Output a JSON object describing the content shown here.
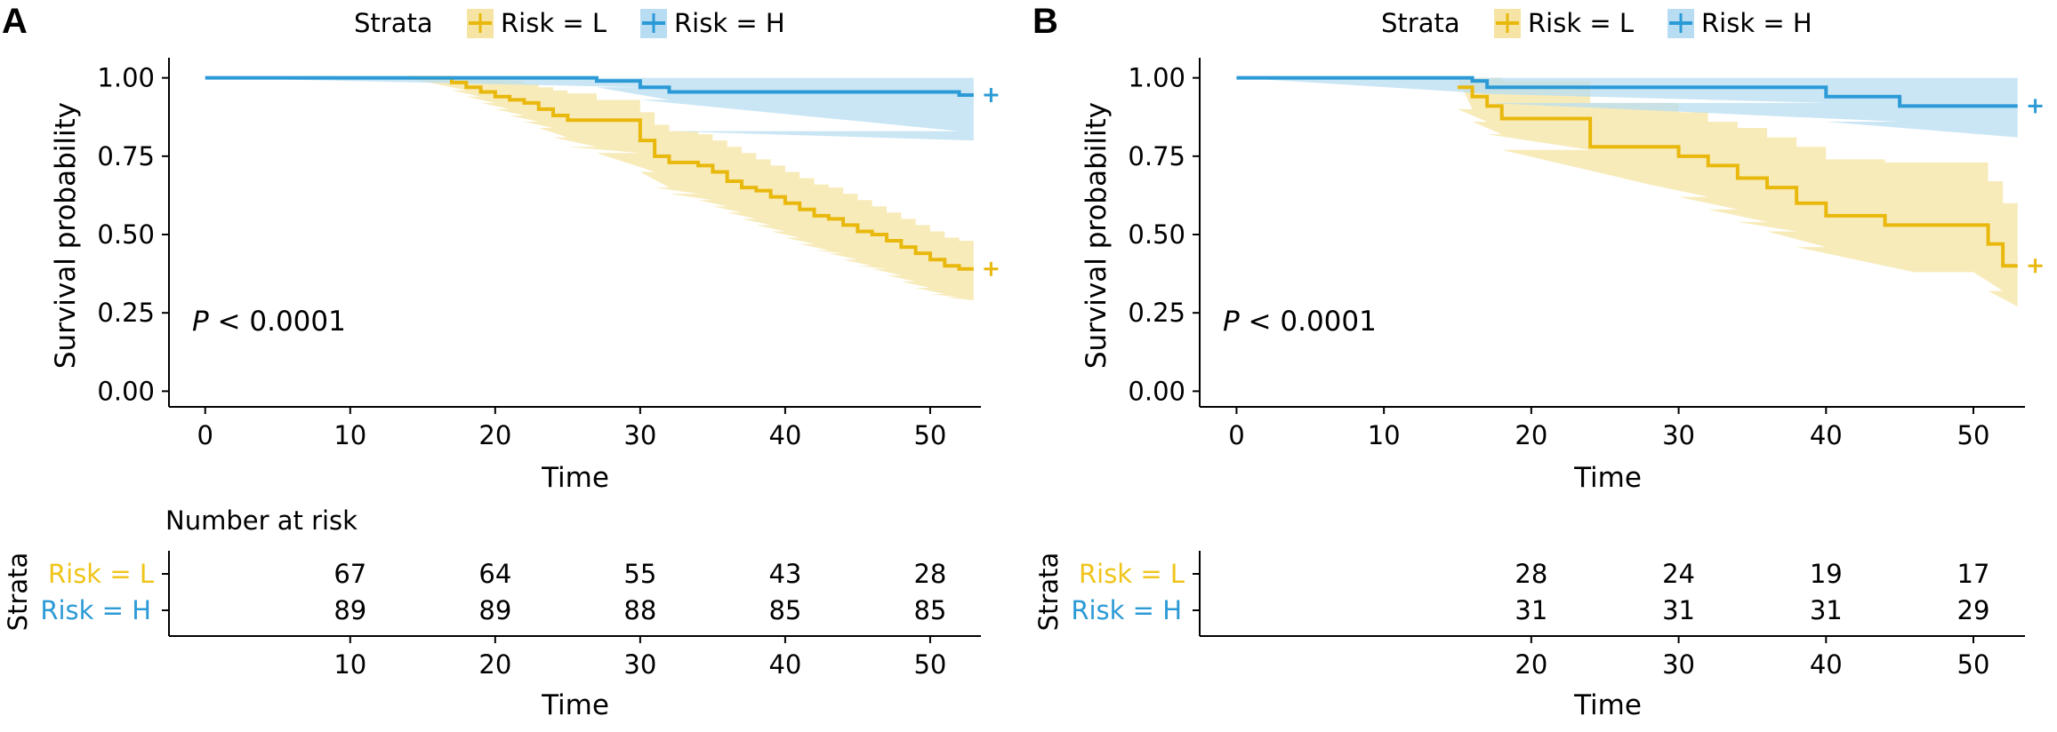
{
  "colors": {
    "low": "#E8B80C",
    "high": "#2B9AD6",
    "low_fill": "#F5E4A3",
    "high_fill": "#B8DDF2",
    "axis": "#000000"
  },
  "panels": [
    {
      "letter": "A",
      "legend_title": "Strata",
      "p_value_letter": "P",
      "p_value_rest": " < 0.0001",
      "risk_table_title": "Number at risk",
      "risk_table_ylabel": "Strata",
      "risk_table_xlabel": "Time",
      "risk_table_ticks": [
        "10",
        "20",
        "30",
        "40",
        "50"
      ],
      "risk_table_rows": [
        {
          "label": "Risk = L",
          "values": [
            "67",
            "64",
            "55",
            "43",
            "28"
          ]
        },
        {
          "label": "Risk = H",
          "values": [
            "89",
            "89",
            "88",
            "85",
            "85"
          ]
        }
      ]
    },
    {
      "letter": "B",
      "legend_title": "Strata",
      "p_value_letter": "P",
      "p_value_rest": " < 0.0001",
      "risk_table_title": "",
      "risk_table_ylabel": "Strata",
      "risk_table_xlabel": "Time",
      "risk_table_ticks": [
        "20",
        "30",
        "40",
        "50"
      ],
      "risk_table_rows": [
        {
          "label": "Risk = L",
          "values": [
            "28",
            "24",
            "19",
            "17"
          ]
        },
        {
          "label": "Risk = H",
          "values": [
            "31",
            "31",
            "31",
            "29"
          ]
        }
      ]
    }
  ],
  "chart_data": [
    {
      "type": "line",
      "xlabel": "Time",
      "ylabel": "Survival probability",
      "xlim": [
        -2.5,
        53.5
      ],
      "ylim": [
        -0.05,
        1.05
      ],
      "xticks": [
        0,
        10,
        20,
        30,
        40,
        50
      ],
      "yticks": [
        "0.00",
        "0.25",
        "0.50",
        "0.75",
        "1.00"
      ],
      "legend_position": "top",
      "series": [
        {
          "name": "Risk = L",
          "color_key": "low",
          "x": [
            14,
            17,
            18,
            19,
            20,
            21,
            22,
            23,
            24,
            25,
            27,
            30,
            31,
            32,
            34,
            35,
            36,
            37,
            38,
            39,
            40,
            41,
            42,
            43,
            44,
            45,
            46,
            47,
            48,
            49,
            50,
            51,
            52,
            53
          ],
          "y": [
            1.0,
            0.985,
            0.97,
            0.955,
            0.94,
            0.93,
            0.92,
            0.9,
            0.88,
            0.865,
            0.865,
            0.8,
            0.75,
            0.73,
            0.72,
            0.7,
            0.67,
            0.65,
            0.64,
            0.62,
            0.6,
            0.58,
            0.56,
            0.55,
            0.53,
            0.51,
            0.5,
            0.48,
            0.46,
            0.44,
            0.42,
            0.4,
            0.39,
            0.39
          ],
          "lower": [
            1.0,
            0.96,
            0.94,
            0.92,
            0.9,
            0.88,
            0.86,
            0.84,
            0.81,
            0.78,
            0.76,
            0.7,
            0.65,
            0.63,
            0.61,
            0.59,
            0.57,
            0.55,
            0.53,
            0.51,
            0.49,
            0.47,
            0.45,
            0.44,
            0.42,
            0.4,
            0.39,
            0.37,
            0.35,
            0.33,
            0.31,
            0.3,
            0.29,
            0.29
          ],
          "upper": [
            1.0,
            1.0,
            1.0,
            1.0,
            1.0,
            0.99,
            0.98,
            0.97,
            0.96,
            0.95,
            0.93,
            0.89,
            0.85,
            0.83,
            0.82,
            0.8,
            0.78,
            0.76,
            0.74,
            0.72,
            0.7,
            0.68,
            0.66,
            0.65,
            0.63,
            0.61,
            0.59,
            0.57,
            0.55,
            0.53,
            0.51,
            0.49,
            0.48,
            0.48
          ],
          "censor_x": 54.2,
          "censor_y": 0.39
        },
        {
          "name": "Risk = H",
          "color_key": "high",
          "x": [
            0,
            27,
            30,
            32,
            52,
            53
          ],
          "y": [
            1.0,
            0.99,
            0.97,
            0.955,
            0.945,
            0.945
          ],
          "lower": [
            1.0,
            0.97,
            0.93,
            0.83,
            0.8,
            0.8
          ],
          "upper": [
            1.0,
            1.0,
            1.0,
            1.0,
            1.0,
            1.0
          ],
          "censor_x": 54.2,
          "censor_y": 0.945
        }
      ]
    },
    {
      "type": "line",
      "xlabel": "Time",
      "ylabel": "Survival probability",
      "xlim": [
        -2.5,
        53.5
      ],
      "ylim": [
        -0.05,
        1.05
      ],
      "xticks": [
        0,
        10,
        20,
        30,
        40,
        50
      ],
      "yticks": [
        "0.00",
        "0.25",
        "0.50",
        "0.75",
        "1.00"
      ],
      "legend_position": "top",
      "series": [
        {
          "name": "Risk = L",
          "color_key": "low",
          "x": [
            15,
            16,
            17,
            18,
            24,
            28,
            30,
            32,
            34,
            36,
            38,
            40,
            42,
            44,
            46,
            48,
            50,
            51,
            52,
            53
          ],
          "y": [
            0.97,
            0.94,
            0.91,
            0.87,
            0.78,
            0.78,
            0.75,
            0.72,
            0.68,
            0.65,
            0.6,
            0.56,
            0.56,
            0.53,
            0.53,
            0.53,
            0.53,
            0.47,
            0.4,
            0.4
          ],
          "lower": [
            0.9,
            0.86,
            0.82,
            0.77,
            0.66,
            0.66,
            0.62,
            0.58,
            0.54,
            0.51,
            0.46,
            0.42,
            0.42,
            0.38,
            0.38,
            0.38,
            0.38,
            0.32,
            0.27,
            0.27
          ],
          "upper": [
            1.0,
            1.0,
            1.0,
            0.99,
            0.92,
            0.92,
            0.89,
            0.86,
            0.84,
            0.81,
            0.78,
            0.74,
            0.74,
            0.73,
            0.73,
            0.73,
            0.73,
            0.67,
            0.6,
            0.6
          ],
          "censor_x": 54.2,
          "censor_y": 0.4
        },
        {
          "name": "Risk = H",
          "color_key": "high",
          "x": [
            0,
            16,
            17,
            40,
            45,
            53
          ],
          "y": [
            1.0,
            0.99,
            0.97,
            0.94,
            0.91,
            0.91
          ],
          "lower": [
            1.0,
            0.95,
            0.92,
            0.86,
            0.81,
            0.81
          ],
          "upper": [
            1.0,
            1.0,
            1.0,
            1.0,
            1.0,
            1.0
          ],
          "censor_x": 54.2,
          "censor_y": 0.91
        }
      ]
    }
  ]
}
